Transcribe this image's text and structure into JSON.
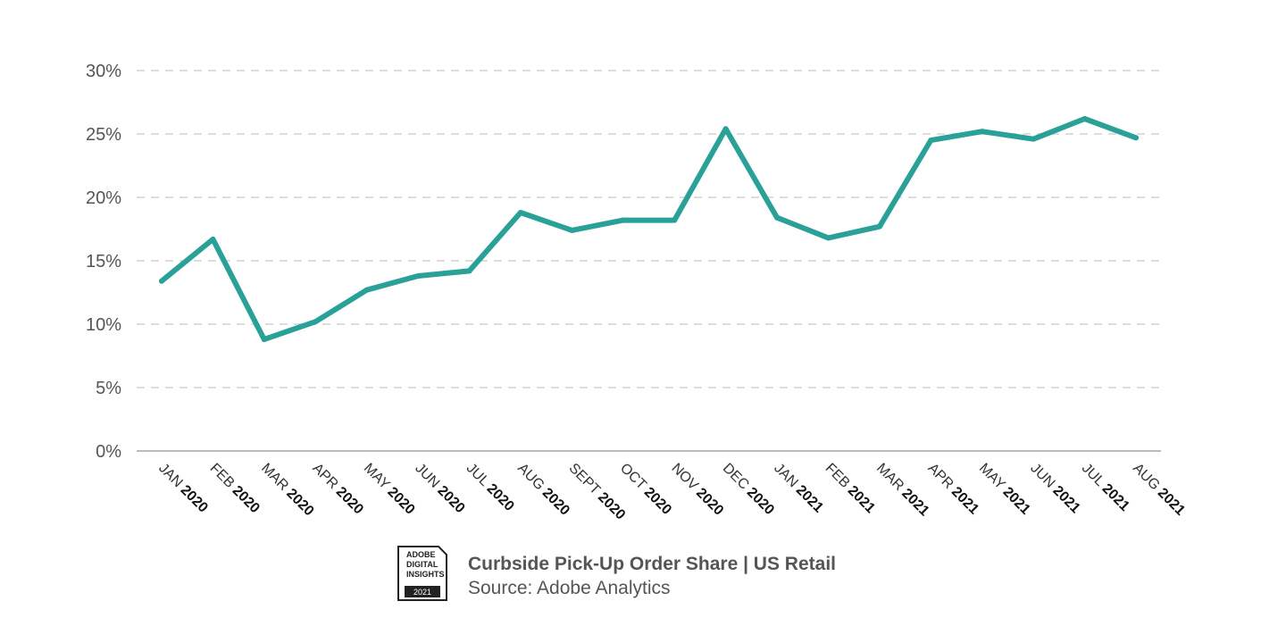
{
  "chart_data": {
    "type": "line",
    "title": "Curbside Pick-Up Order Share | US Retail",
    "subtitle": "Source: Adobe Analytics",
    "categories": [
      {
        "month": "JAN",
        "year": "2020"
      },
      {
        "month": "FEB",
        "year": "2020"
      },
      {
        "month": "MAR",
        "year": "2020"
      },
      {
        "month": "APR",
        "year": "2020"
      },
      {
        "month": "MAY",
        "year": "2020"
      },
      {
        "month": "JUN",
        "year": "2020"
      },
      {
        "month": "JUL",
        "year": "2020"
      },
      {
        "month": "AUG",
        "year": "2020"
      },
      {
        "month": "SEPT",
        "year": "2020"
      },
      {
        "month": "OCT",
        "year": "2020"
      },
      {
        "month": "NOV",
        "year": "2020"
      },
      {
        "month": "DEC",
        "year": "2020"
      },
      {
        "month": "JAN",
        "year": "2021"
      },
      {
        "month": "FEB",
        "year": "2021"
      },
      {
        "month": "MAR",
        "year": "2021"
      },
      {
        "month": "APR",
        "year": "2021"
      },
      {
        "month": "MAY",
        "year": "2021"
      },
      {
        "month": "JUN",
        "year": "2021"
      },
      {
        "month": "JUL",
        "year": "2021"
      },
      {
        "month": "AUG",
        "year": "2021"
      }
    ],
    "series": [
      {
        "values": [
          13.4,
          16.7,
          8.8,
          10.2,
          12.7,
          13.8,
          14.2,
          18.8,
          17.4,
          18.2,
          18.2,
          25.4,
          18.4,
          16.8,
          17.7,
          24.5,
          25.2,
          24.6,
          26.2,
          24.7
        ]
      }
    ],
    "ylim": [
      0,
      30
    ],
    "yticks": [
      "0%",
      "5%",
      "10%",
      "15%",
      "20%",
      "25%",
      "30%"
    ],
    "ytick_values": [
      0,
      5,
      10,
      15,
      20,
      25,
      30
    ],
    "grid": true,
    "line_color": "#2aa198",
    "grid_color": "#dddddd",
    "axis_color": "#bbbbbb"
  },
  "logo": {
    "lines": [
      "ADOBE",
      "DIGITAL",
      "INSIGHTS"
    ],
    "year": "2021"
  }
}
